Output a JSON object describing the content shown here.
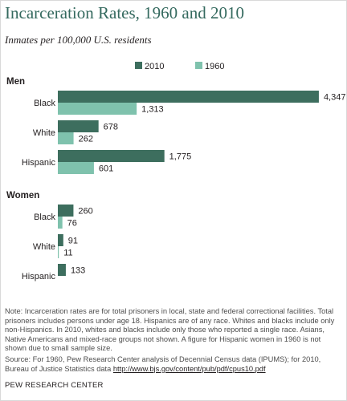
{
  "title": "Incarceration Rates, 1960 and 2010",
  "subtitle": "Inmates per 100,000 U.S. residents",
  "colors": {
    "s2010": "#3d6e5e",
    "s1960": "#7fc2ad"
  },
  "chart_data": {
    "type": "bar",
    "orientation": "horizontal",
    "legend_placement": "top",
    "series": [
      {
        "name": "2010",
        "color": "#3d6e5e"
      },
      {
        "name": "1960",
        "color": "#7fc2ad"
      }
    ],
    "groups": [
      {
        "label": "Men",
        "categories": [
          {
            "label": "Black",
            "values": [
              4347,
              1313
            ],
            "value_labels": [
              "4,347",
              "1,313"
            ]
          },
          {
            "label": "White",
            "values": [
              678,
              262
            ],
            "value_labels": [
              "678",
              "262"
            ]
          },
          {
            "label": "Hispanic",
            "values": [
              1775,
              601
            ],
            "value_labels": [
              "1,775",
              "601"
            ]
          }
        ]
      },
      {
        "label": "Women",
        "categories": [
          {
            "label": "Black",
            "values": [
              260,
              76
            ],
            "value_labels": [
              "260",
              "76"
            ]
          },
          {
            "label": "White",
            "values": [
              91,
              11
            ],
            "value_labels": [
              "91",
              "11"
            ]
          },
          {
            "label": "Hispanic",
            "values": [
              133,
              null
            ],
            "value_labels": [
              "133",
              null
            ]
          }
        ]
      }
    ]
  },
  "note": "Note: Incarceration rates are for total prisoners in local, state and federal correctional facilities. Total prisoners includes persons under age 18. Hispanics are of any race. Whites and blacks include only non-Hispanics. In 2010, whites and blacks include only those who reported a single race. Asians, Native Americans and mixed-race groups not shown. A figure for Hispanic women in 1960 is not shown due to small sample size.",
  "source_text": "Source: For 1960, Pew Research Center analysis of Decennial Census data (IPUMS); for 2010, Bureau of Justice Statistics data",
  "source_link": "http://www.bjs.gov/content/pub/pdf/cpus10.pdf",
  "credit": "PEW RESEARCH CENTER"
}
